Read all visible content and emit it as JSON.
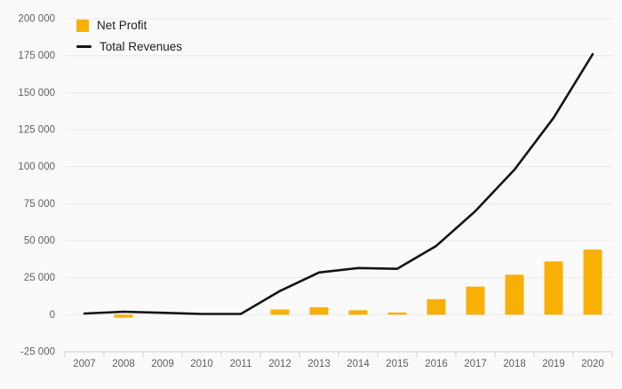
{
  "chart_data": {
    "type": "combo",
    "title": "",
    "xlabel": "",
    "ylabel": "",
    "categories": [
      "2007",
      "2008",
      "2009",
      "2010",
      "2011",
      "2012",
      "2013",
      "2014",
      "2015",
      "2016",
      "2017",
      "2018",
      "2019",
      "2020"
    ],
    "series": [
      {
        "name": "Net Profit",
        "type": "bar",
        "color": "#F9B005",
        "values": [
          null,
          -2000,
          null,
          null,
          null,
          3500,
          5000,
          3000,
          1500,
          10500,
          19000,
          27000,
          36000,
          44000
        ]
      },
      {
        "name": "Total Revenues",
        "type": "line",
        "color": "#141414",
        "values": [
          800,
          2000,
          1300,
          500,
          500,
          16000,
          28500,
          31500,
          31000,
          46500,
          70000,
          98000,
          133000,
          176000
        ]
      }
    ],
    "ylim": [
      -25000,
      200000
    ],
    "y_ticks": [
      -25000,
      0,
      25000,
      50000,
      75000,
      100000,
      125000,
      150000,
      175000,
      200000
    ],
    "y_tick_labels": [
      "-25 000",
      "0",
      "25 000",
      "50 000",
      "75 000",
      "100 000",
      "125 000",
      "150 000",
      "175 000",
      "200 000"
    ],
    "grid": true,
    "legend_position": "top-left",
    "colors": {
      "background": "#FAFAFA",
      "grid": "#E9E9E9",
      "axis": "#C7CCE4",
      "tick_label": "#5F5F5F"
    }
  }
}
